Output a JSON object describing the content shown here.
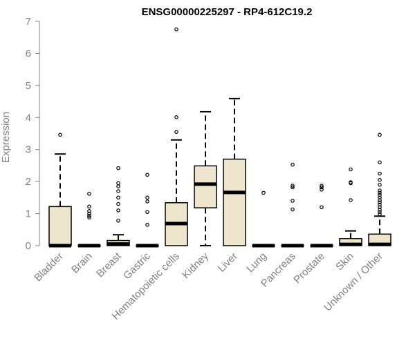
{
  "chart_data": {
    "type": "boxplot",
    "title": "ENSG00000225297 - RP4-612C19.2",
    "ylabel": "Expression",
    "xlabel": "",
    "ylim": [
      0,
      7
    ],
    "yticks": [
      0,
      1,
      2,
      3,
      4,
      5,
      6,
      7
    ],
    "grid": false,
    "colors": {
      "box_fill": "#ede6cc",
      "stroke": "#000000",
      "axis": "#808080",
      "title": "#000000"
    },
    "categories": [
      "Bladder",
      "Brain",
      "Breast",
      "Gastric",
      "Hematopoietic cells",
      "Kidney",
      "Liver",
      "Lung",
      "Pancreas",
      "Prostate",
      "Skin",
      "Unknown / Other"
    ],
    "boxes": [
      {
        "category": "Bladder",
        "q1": 0,
        "median": 0,
        "q3": 1.22,
        "whisker_low": 0,
        "whisker_high": 2.86,
        "outliers": [
          3.46
        ]
      },
      {
        "category": "Brain",
        "q1": 0,
        "median": 0,
        "q3": 0,
        "whisker_low": 0,
        "whisker_high": 0,
        "outliers": [
          0.88,
          0.93,
          1.0,
          1.08,
          1.22,
          1.62
        ]
      },
      {
        "category": "Breast",
        "q1": 0,
        "median": 0.05,
        "q3": 0.16,
        "whisker_low": 0,
        "whisker_high": 0.34,
        "outliers": [
          0.78,
          1.1,
          1.3,
          1.5,
          1.7,
          1.85,
          1.95,
          2.42
        ]
      },
      {
        "category": "Gastric",
        "q1": 0,
        "median": 0,
        "q3": 0,
        "whisker_low": 0,
        "whisker_high": 0,
        "outliers": [
          0.65,
          1.05,
          1.38,
          1.5,
          2.21
        ]
      },
      {
        "category": "Hematopoietic cells",
        "q1": 0,
        "median": 0.69,
        "q3": 1.34,
        "whisker_low": 0,
        "whisker_high": 3.3,
        "outliers": [
          3.55,
          4.01,
          6.75
        ]
      },
      {
        "category": "Kidney",
        "q1": 1.18,
        "median": 1.92,
        "q3": 2.49,
        "whisker_low": 0,
        "whisker_high": 4.18,
        "outliers": []
      },
      {
        "category": "Liver",
        "q1": 0,
        "median": 1.66,
        "q3": 2.7,
        "whisker_low": 0,
        "whisker_high": 4.59,
        "outliers": []
      },
      {
        "category": "Lung",
        "q1": 0,
        "median": 0,
        "q3": 0,
        "whisker_low": 0,
        "whisker_high": 0,
        "outliers": [
          1.65
        ]
      },
      {
        "category": "Pancreas",
        "q1": 0,
        "median": 0,
        "q3": 0,
        "whisker_low": 0,
        "whisker_high": 0,
        "outliers": [
          1.13,
          1.4,
          1.82,
          1.87,
          2.53
        ]
      },
      {
        "category": "Prostate",
        "q1": 0,
        "median": 0,
        "q3": 0,
        "whisker_low": 0,
        "whisker_high": 0,
        "outliers": [
          1.2,
          1.75,
          1.82,
          1.87
        ]
      },
      {
        "category": "Skin",
        "q1": 0,
        "median": 0.04,
        "q3": 0.22,
        "whisker_low": 0,
        "whisker_high": 0.46,
        "outliers": [
          1.42,
          1.95,
          1.98,
          2.38
        ]
      },
      {
        "category": "Unknown / Other",
        "q1": 0,
        "median": 0.04,
        "q3": 0.36,
        "whisker_low": 0,
        "whisker_high": 0.92,
        "outliers": [
          0.98,
          1.05,
          1.12,
          1.2,
          1.28,
          1.35,
          1.42,
          1.5,
          1.58,
          1.65,
          1.72,
          1.9,
          2.05,
          2.25,
          2.6,
          3.46
        ]
      }
    ]
  }
}
